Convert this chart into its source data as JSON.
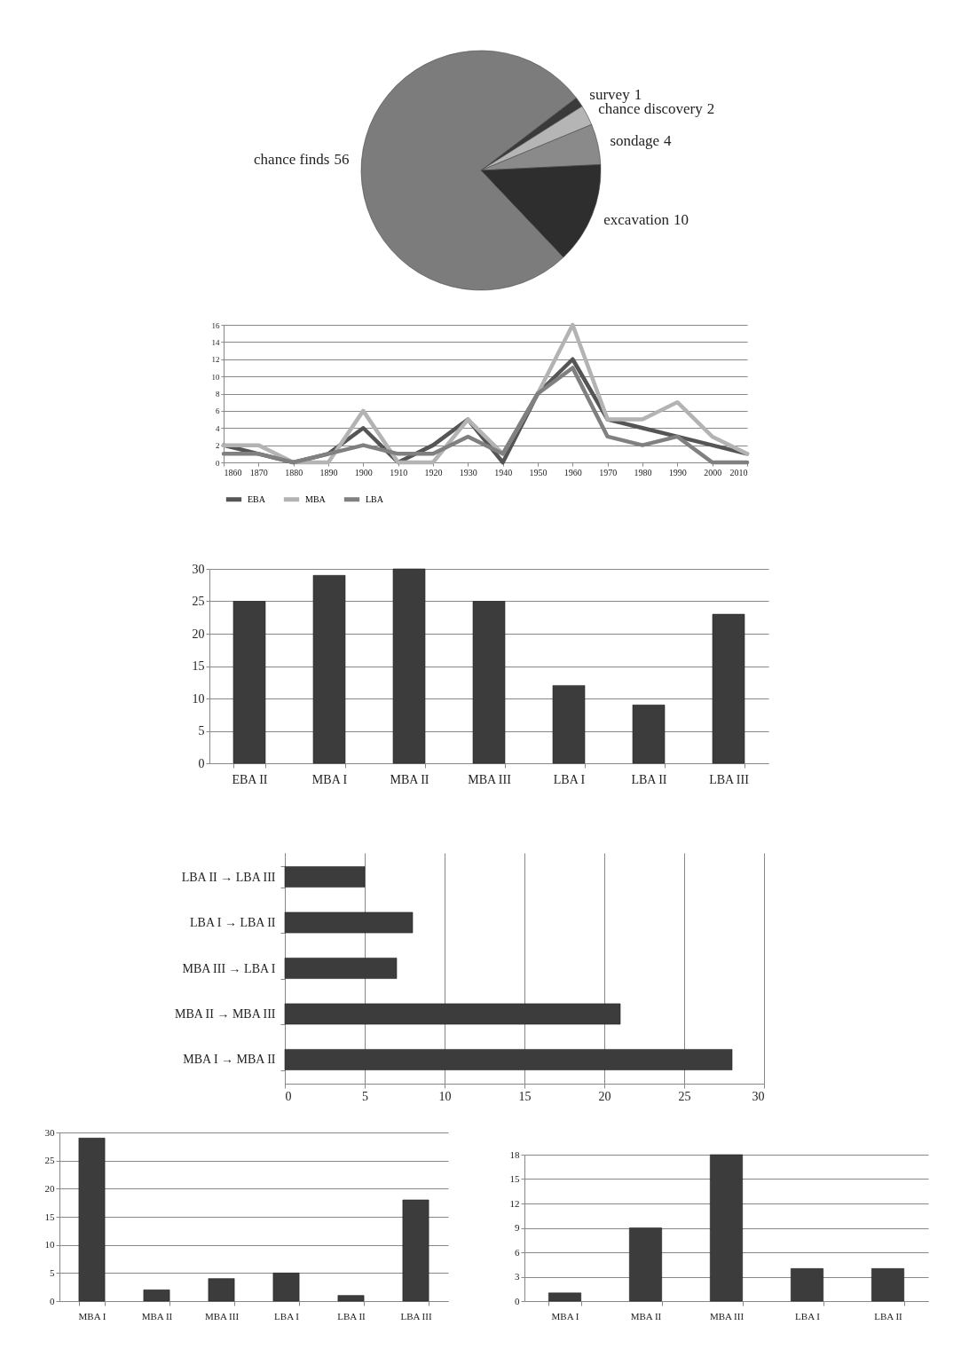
{
  "chart_data": [
    {
      "type": "pie",
      "categories": [
        "survey",
        "chance discovery",
        "sondage",
        "excavation",
        "chance finds"
      ],
      "values": [
        1,
        2,
        4,
        10,
        56
      ],
      "colors": [
        "#3a3a3a",
        "#b5b5b5",
        "#8a8a8a",
        "#2e2e2e",
        "#7c7c7c"
      ],
      "data_labels": true
    },
    {
      "type": "line",
      "x": [
        1860,
        1870,
        1880,
        1890,
        1900,
        1910,
        1920,
        1930,
        1940,
        1950,
        1960,
        1970,
        1980,
        1990,
        2000,
        2010
      ],
      "xlim": [
        1860,
        2010
      ],
      "xticks": [
        1860,
        1870,
        1880,
        1890,
        1900,
        1910,
        1920,
        1930,
        1940,
        1950,
        1960,
        1970,
        1980,
        1990,
        2000,
        2010
      ],
      "ylim": [
        0,
        16
      ],
      "yticks": [
        0,
        2,
        4,
        6,
        8,
        10,
        12,
        14,
        16
      ],
      "grid": "y",
      "legend": "bottom",
      "series": [
        {
          "name": "EBA",
          "color": "#555555",
          "values": [
            2,
            1,
            0,
            1,
            4,
            0,
            2,
            5,
            0,
            8,
            12,
            5,
            4,
            3,
            2,
            1
          ]
        },
        {
          "name": "MBA",
          "color": "#b3b3b3",
          "values": [
            2,
            2,
            0,
            0,
            6,
            0,
            0,
            5,
            1,
            8,
            16,
            5,
            5,
            7,
            3,
            1
          ]
        },
        {
          "name": "LBA",
          "color": "#808080",
          "values": [
            1,
            1,
            0,
            1,
            2,
            1,
            1,
            3,
            1,
            8,
            11,
            3,
            2,
            3,
            0,
            0
          ]
        }
      ]
    },
    {
      "type": "bar",
      "categories": [
        "EBA II",
        "MBA I",
        "MBA II",
        "MBA III",
        "LBA I",
        "LBA II",
        "LBA III"
      ],
      "values": [
        25,
        29,
        30,
        25,
        12,
        9,
        23
      ],
      "color": "#3c3c3c",
      "ylim": [
        0,
        30
      ],
      "yticks": [
        0,
        5,
        10,
        15,
        20,
        25,
        30
      ],
      "grid": "y"
    },
    {
      "type": "bar",
      "orientation": "horizontal",
      "categories": [
        "LBA II → LBA III",
        "LBA I → LBA II",
        "MBA III → LBA I",
        "MBA II → MBA III",
        "MBA I → MBA II"
      ],
      "values": [
        5,
        8,
        7,
        21,
        28
      ],
      "color": "#3c3c3c",
      "xlim": [
        0,
        30
      ],
      "xticks": [
        0,
        5,
        10,
        15,
        20,
        25,
        30
      ],
      "grid": "x"
    },
    {
      "type": "bar",
      "categories": [
        "MBA I",
        "MBA II",
        "MBA III",
        "LBA I",
        "LBA II",
        "LBA III"
      ],
      "values": [
        29,
        2,
        4,
        5,
        1,
        18
      ],
      "color": "#3c3c3c",
      "ylim": [
        0,
        30
      ],
      "yticks": [
        0,
        5,
        10,
        15,
        20,
        25,
        30
      ],
      "grid": "y"
    },
    {
      "type": "bar",
      "categories": [
        "MBA I",
        "MBA II",
        "MBA III",
        "LBA I",
        "LBA II"
      ],
      "values": [
        1,
        9,
        18,
        4,
        4
      ],
      "color": "#3c3c3c",
      "ylim": [
        0,
        18
      ],
      "yticks": [
        0,
        3,
        6,
        9,
        12,
        15,
        18
      ],
      "grid": "y"
    }
  ]
}
